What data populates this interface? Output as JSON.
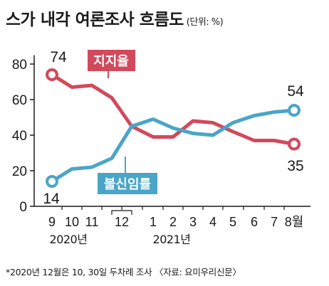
{
  "title": "스가 내각 여론조사 흐름도",
  "unit": "(단위: %)",
  "footnote": "*2020년 12월은 10, 30일 두차례 조사 〈자료: 요미우리신문〉",
  "colors": {
    "approval": "#d2495c",
    "disapproval": "#4aa5c8",
    "axis": "#1a1a1a",
    "grid": "#d9d9d9"
  },
  "chart_data": {
    "type": "line",
    "title": "스가 내각 여론조사 흐름도",
    "unit": "(단위: %)",
    "x_labels": [
      "9",
      "10",
      "11",
      "12",
      "12",
      "1",
      "2",
      "3",
      "4",
      "5",
      "6",
      "7",
      "8월"
    ],
    "x_year_labels": [
      "2020년",
      "2021년"
    ],
    "y_ticks": [
      0,
      20,
      40,
      60,
      80
    ],
    "ylim": [
      0,
      85
    ],
    "grid": false,
    "series": [
      {
        "name": "지지율",
        "values": [
          74,
          67,
          68,
          61,
          45,
          39,
          39,
          48,
          47,
          42,
          37,
          37,
          35
        ],
        "start_label": "74",
        "end_label": "35"
      },
      {
        "name": "불신임률",
        "values": [
          14,
          21,
          22,
          27,
          45,
          49,
          44,
          41,
          40,
          47,
          51,
          53,
          54
        ],
        "start_label": "14",
        "end_label": "54"
      }
    ]
  }
}
